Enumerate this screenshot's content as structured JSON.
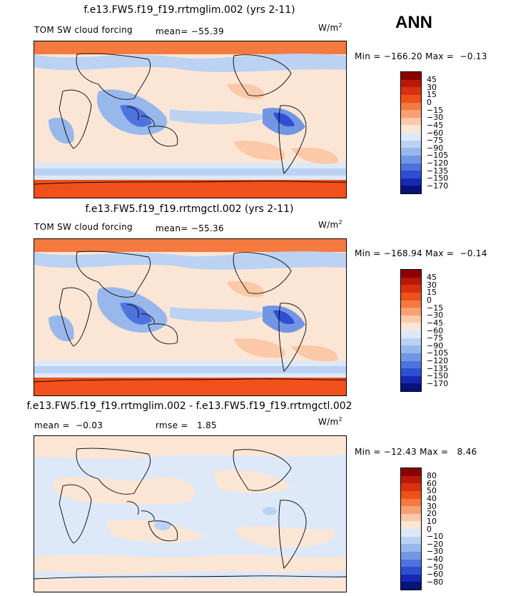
{
  "season": "ANN",
  "panels": [
    {
      "title": "f.e13.FW5.f19_f19.rrtmglim.002 (yrs 2-11)",
      "variable": "TOM SW cloud forcing",
      "mean_label": "mean=",
      "mean_value": "−55.39",
      "units": "W/m",
      "units_sup": "2",
      "min_label": "Min =",
      "min_value": "−166.20",
      "max_label": "Max =",
      "max_value": "−0.13",
      "levels": [
        "45",
        "30",
        "15",
        "0",
        "−15",
        "−30",
        "−45",
        "−60",
        "−75",
        "−90",
        "−105",
        "−120",
        "−135",
        "−150",
        "−170"
      ]
    },
    {
      "title": "f.e13.FW5.f19_f19.rrtmgctl.002 (yrs 2-11)",
      "variable": "TOM SW cloud forcing",
      "mean_label": "mean=",
      "mean_value": "−55.36",
      "units": "W/m",
      "units_sup": "2",
      "min_label": "Min =",
      "min_value": "−168.94",
      "max_label": "Max =",
      "max_value": "−0.14",
      "levels": [
        "45",
        "30",
        "15",
        "0",
        "−15",
        "−30",
        "−45",
        "−60",
        "−75",
        "−90",
        "−105",
        "−120",
        "−135",
        "−150",
        "−170"
      ]
    },
    {
      "title": "f.e13.FW5.f19_f19.rrtmglim.002 - f.e13.FW5.f19_f19.rrtmgctl.002",
      "mean_label": "mean =",
      "mean_value": "−0.03",
      "rmse_label": "rmse =",
      "rmse_value": "1.85",
      "units": "W/m",
      "units_sup": "2",
      "min_label": "Min =",
      "min_value": "−12.43",
      "max_label": "Max =",
      "max_value": "8.46",
      "levels": [
        "80",
        "60",
        "50",
        "40",
        "30",
        "20",
        "10",
        "0",
        "−10",
        "−20",
        "−30",
        "−40",
        "−50",
        "−60",
        "−80"
      ]
    }
  ],
  "chart_data": [
    {
      "type": "heatmap",
      "title": "f.e13.FW5.f19_f19.rrtmglim.002 (yrs 2-11)",
      "variable": "TOM SW cloud forcing",
      "units": "W/m2",
      "mean": -55.39,
      "min": -166.2,
      "max": -0.13,
      "contour_levels": [
        45,
        30,
        15,
        0,
        -15,
        -30,
        -45,
        -60,
        -75,
        -90,
        -105,
        -120,
        -135,
        -150,
        -170
      ]
    },
    {
      "type": "heatmap",
      "title": "f.e13.FW5.f19_f19.rrtmgctl.002 (yrs 2-11)",
      "variable": "TOM SW cloud forcing",
      "units": "W/m2",
      "mean": -55.36,
      "min": -168.94,
      "max": -0.14,
      "contour_levels": [
        45,
        30,
        15,
        0,
        -15,
        -30,
        -45,
        -60,
        -75,
        -90,
        -105,
        -120,
        -135,
        -150,
        -170
      ]
    },
    {
      "type": "heatmap",
      "title": "f.e13.FW5.f19_f19.rrtmglim.002 - f.e13.FW5.f19_f19.rrtmgctl.002",
      "units": "W/m2",
      "mean": -0.03,
      "rmse": 1.85,
      "min": -12.43,
      "max": 8.46,
      "contour_levels": [
        80,
        60,
        50,
        40,
        30,
        20,
        10,
        0,
        -10,
        -20,
        -30,
        -40,
        -50,
        -60,
        -80
      ]
    }
  ],
  "colormap": [
    "#8b0000",
    "#b8190a",
    "#d9300f",
    "#f0501c",
    "#f57a40",
    "#f9a074",
    "#fbc9a8",
    "#fbe6d6",
    "#dde9f8",
    "#bcd2f3",
    "#98b8ec",
    "#7296e4",
    "#4f73dd",
    "#2e4fd1",
    "#1729b3",
    "#06137a"
  ]
}
